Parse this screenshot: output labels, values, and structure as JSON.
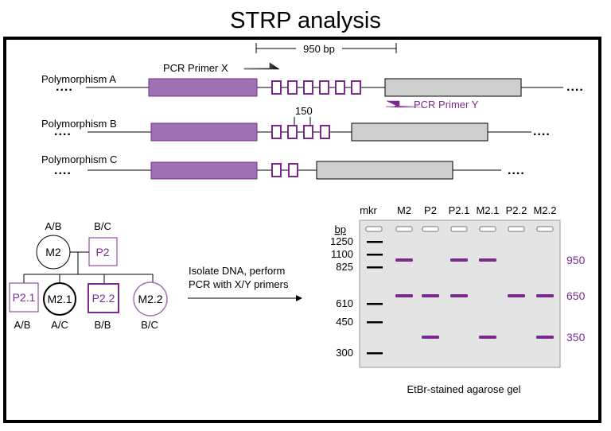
{
  "title": "STRP analysis",
  "scale_label": "950 bp",
  "primers": {
    "x": "PCR Primer X",
    "y": "PCR Primer Y"
  },
  "polymorphisms": [
    {
      "label": "Polymorphism A",
      "repeat_count": 6
    },
    {
      "label": "Polymorphism B",
      "repeat_count": 4,
      "annotation": "150"
    },
    {
      "label": "Polymorphism C",
      "repeat_count": 2
    }
  ],
  "pedigree": {
    "parents": [
      {
        "id": "M2",
        "genotype": "A/B",
        "sex": "female"
      },
      {
        "id": "P2",
        "genotype": "B/C",
        "sex": "male"
      }
    ],
    "children": [
      {
        "id": "P2.1",
        "genotype": "A/B",
        "sex": "male"
      },
      {
        "id": "M2.1",
        "genotype": "A/C",
        "sex": "female"
      },
      {
        "id": "P2.2",
        "genotype": "B/B",
        "sex": "male"
      },
      {
        "id": "M2.2",
        "genotype": "B/C",
        "sex": "female"
      }
    ]
  },
  "process_text": [
    "Isolate DNA, perform",
    "PCR with X/Y primers"
  ],
  "gel": {
    "caption": "EtBr-stained agarose gel",
    "unit_label": "bp",
    "lanes": [
      "mkr",
      "M2",
      "P2",
      "P2.1",
      "M2.1",
      "P2.2",
      "M2.2"
    ],
    "marker_sizes": [
      "1250",
      "1100",
      "825",
      "610",
      "450",
      "300"
    ],
    "band_sizes": [
      "950",
      "650",
      "350"
    ],
    "bands": {
      "M2": [
        "950",
        "650"
      ],
      "P2": [
        "650",
        "350"
      ],
      "P2.1": [
        "950",
        "650"
      ],
      "M2.1": [
        "950",
        "350"
      ],
      "P2.2": [
        "650"
      ],
      "M2.2": [
        "650",
        "350"
      ]
    }
  },
  "colors": {
    "purple": "#7b2b8e",
    "purple_fill": "#9e72b2",
    "gray_fill": "#cfcfcf",
    "gel_bg": "#e4e4e4"
  },
  "truncation_glyph": "...."
}
